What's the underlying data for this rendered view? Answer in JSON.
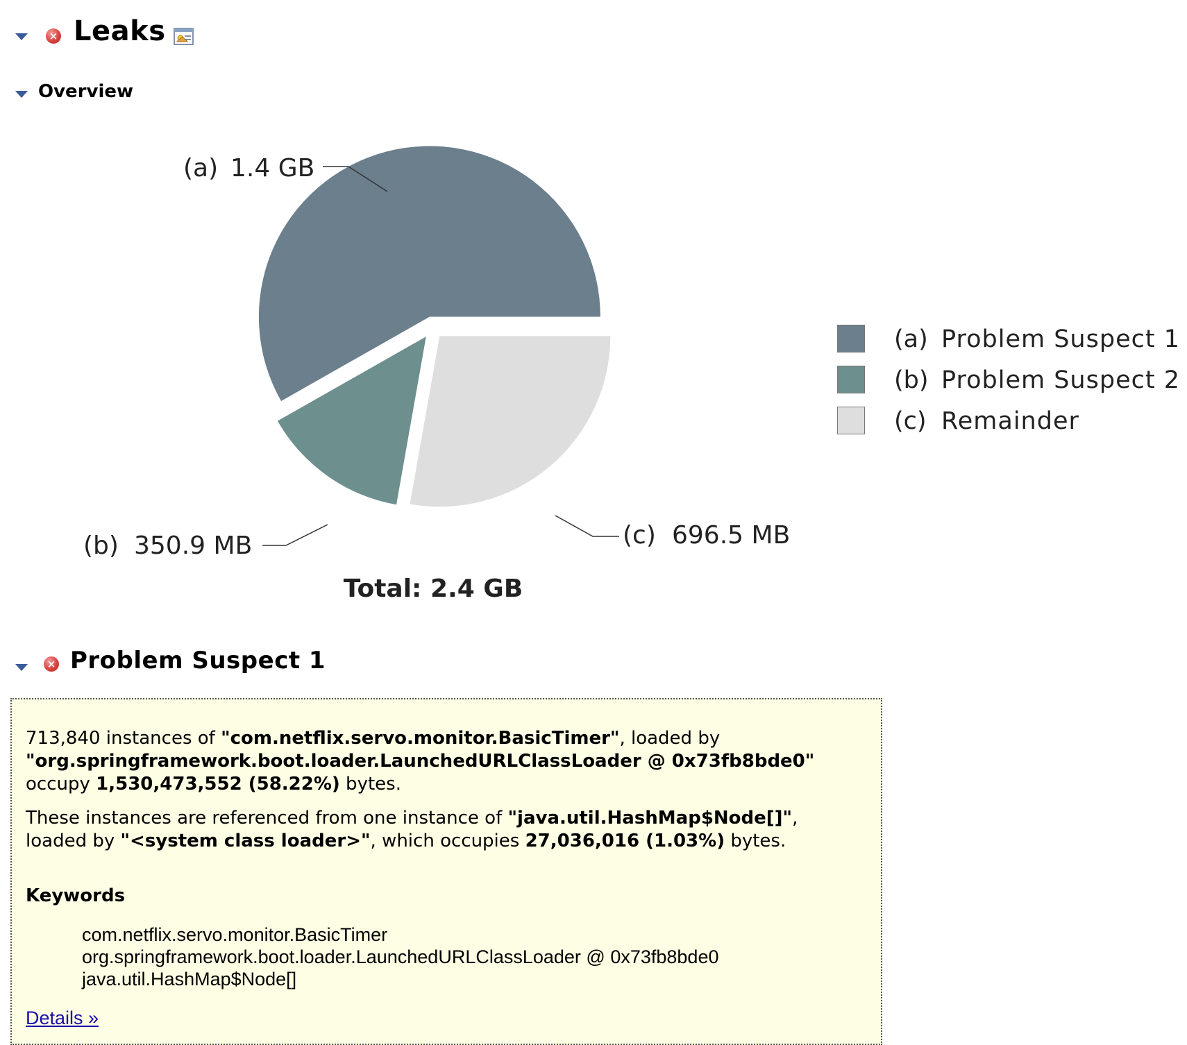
{
  "header": {
    "title": "Leaks",
    "toggle_icon": "chevron-down-icon",
    "status_icon": "error-icon",
    "details_icon": "document-icon",
    "error_glyph": "×"
  },
  "overview": {
    "title": "Overview"
  },
  "chart_data": {
    "type": "pie",
    "slices": [
      {
        "key": "(a)",
        "name": "Problem Suspect 1",
        "label": "1.4 GB",
        "value_bytes": 1530473552,
        "color": "#6b7f8d"
      },
      {
        "key": "(b)",
        "name": "Problem Suspect 2",
        "label": "350.9 MB",
        "value_mb": 350.9,
        "color": "#6d8f8d"
      },
      {
        "key": "(c)",
        "name": "Remainder",
        "label": "696.5 MB",
        "value_mb": 696.5,
        "color": "#dedede"
      }
    ],
    "total_label": "Total: 2.4 GB",
    "legend_position": "right"
  },
  "legend": [
    {
      "key": "(a)",
      "name": "Problem Suspect 1",
      "color": "#6b7f8d"
    },
    {
      "key": "(b)",
      "name": "Problem Suspect 2",
      "color": "#6d8f8d"
    },
    {
      "key": "(c)",
      "name": "Remainder",
      "color": "#dedede"
    }
  ],
  "suspect": {
    "title": "Problem Suspect 1",
    "p1": {
      "count": "713,840",
      "t1": " instances of ",
      "class_name": "\"com.netflix.servo.monitor.BasicTimer\"",
      "t2": ", loaded by",
      "loader": "\"org.springframework.boot.loader.LaunchedURLClassLoader @ 0x73fb8bde0\"",
      "t3": "occupy ",
      "size": "1,530,473,552 (58.22%)",
      "t4": " bytes."
    },
    "p2": {
      "t1": "These instances are referenced from one instance of ",
      "ref_class": "\"java.util.HashMap$Node[]\"",
      "t2": ",",
      "t3": "loaded by ",
      "ref_loader": "\"<system class loader>\"",
      "t4": ", which occupies ",
      "ref_size": "27,036,016 (1.03%)",
      "t5": " bytes."
    },
    "keywords_heading": "Keywords",
    "keywords": [
      "com.netflix.servo.monitor.BasicTimer",
      "org.springframework.boot.loader.LaunchedURLClassLoader @ 0x73fb8bde0",
      "java.util.HashMap$Node[]"
    ],
    "details_link": "Details »",
    "background": "#fefee4"
  }
}
